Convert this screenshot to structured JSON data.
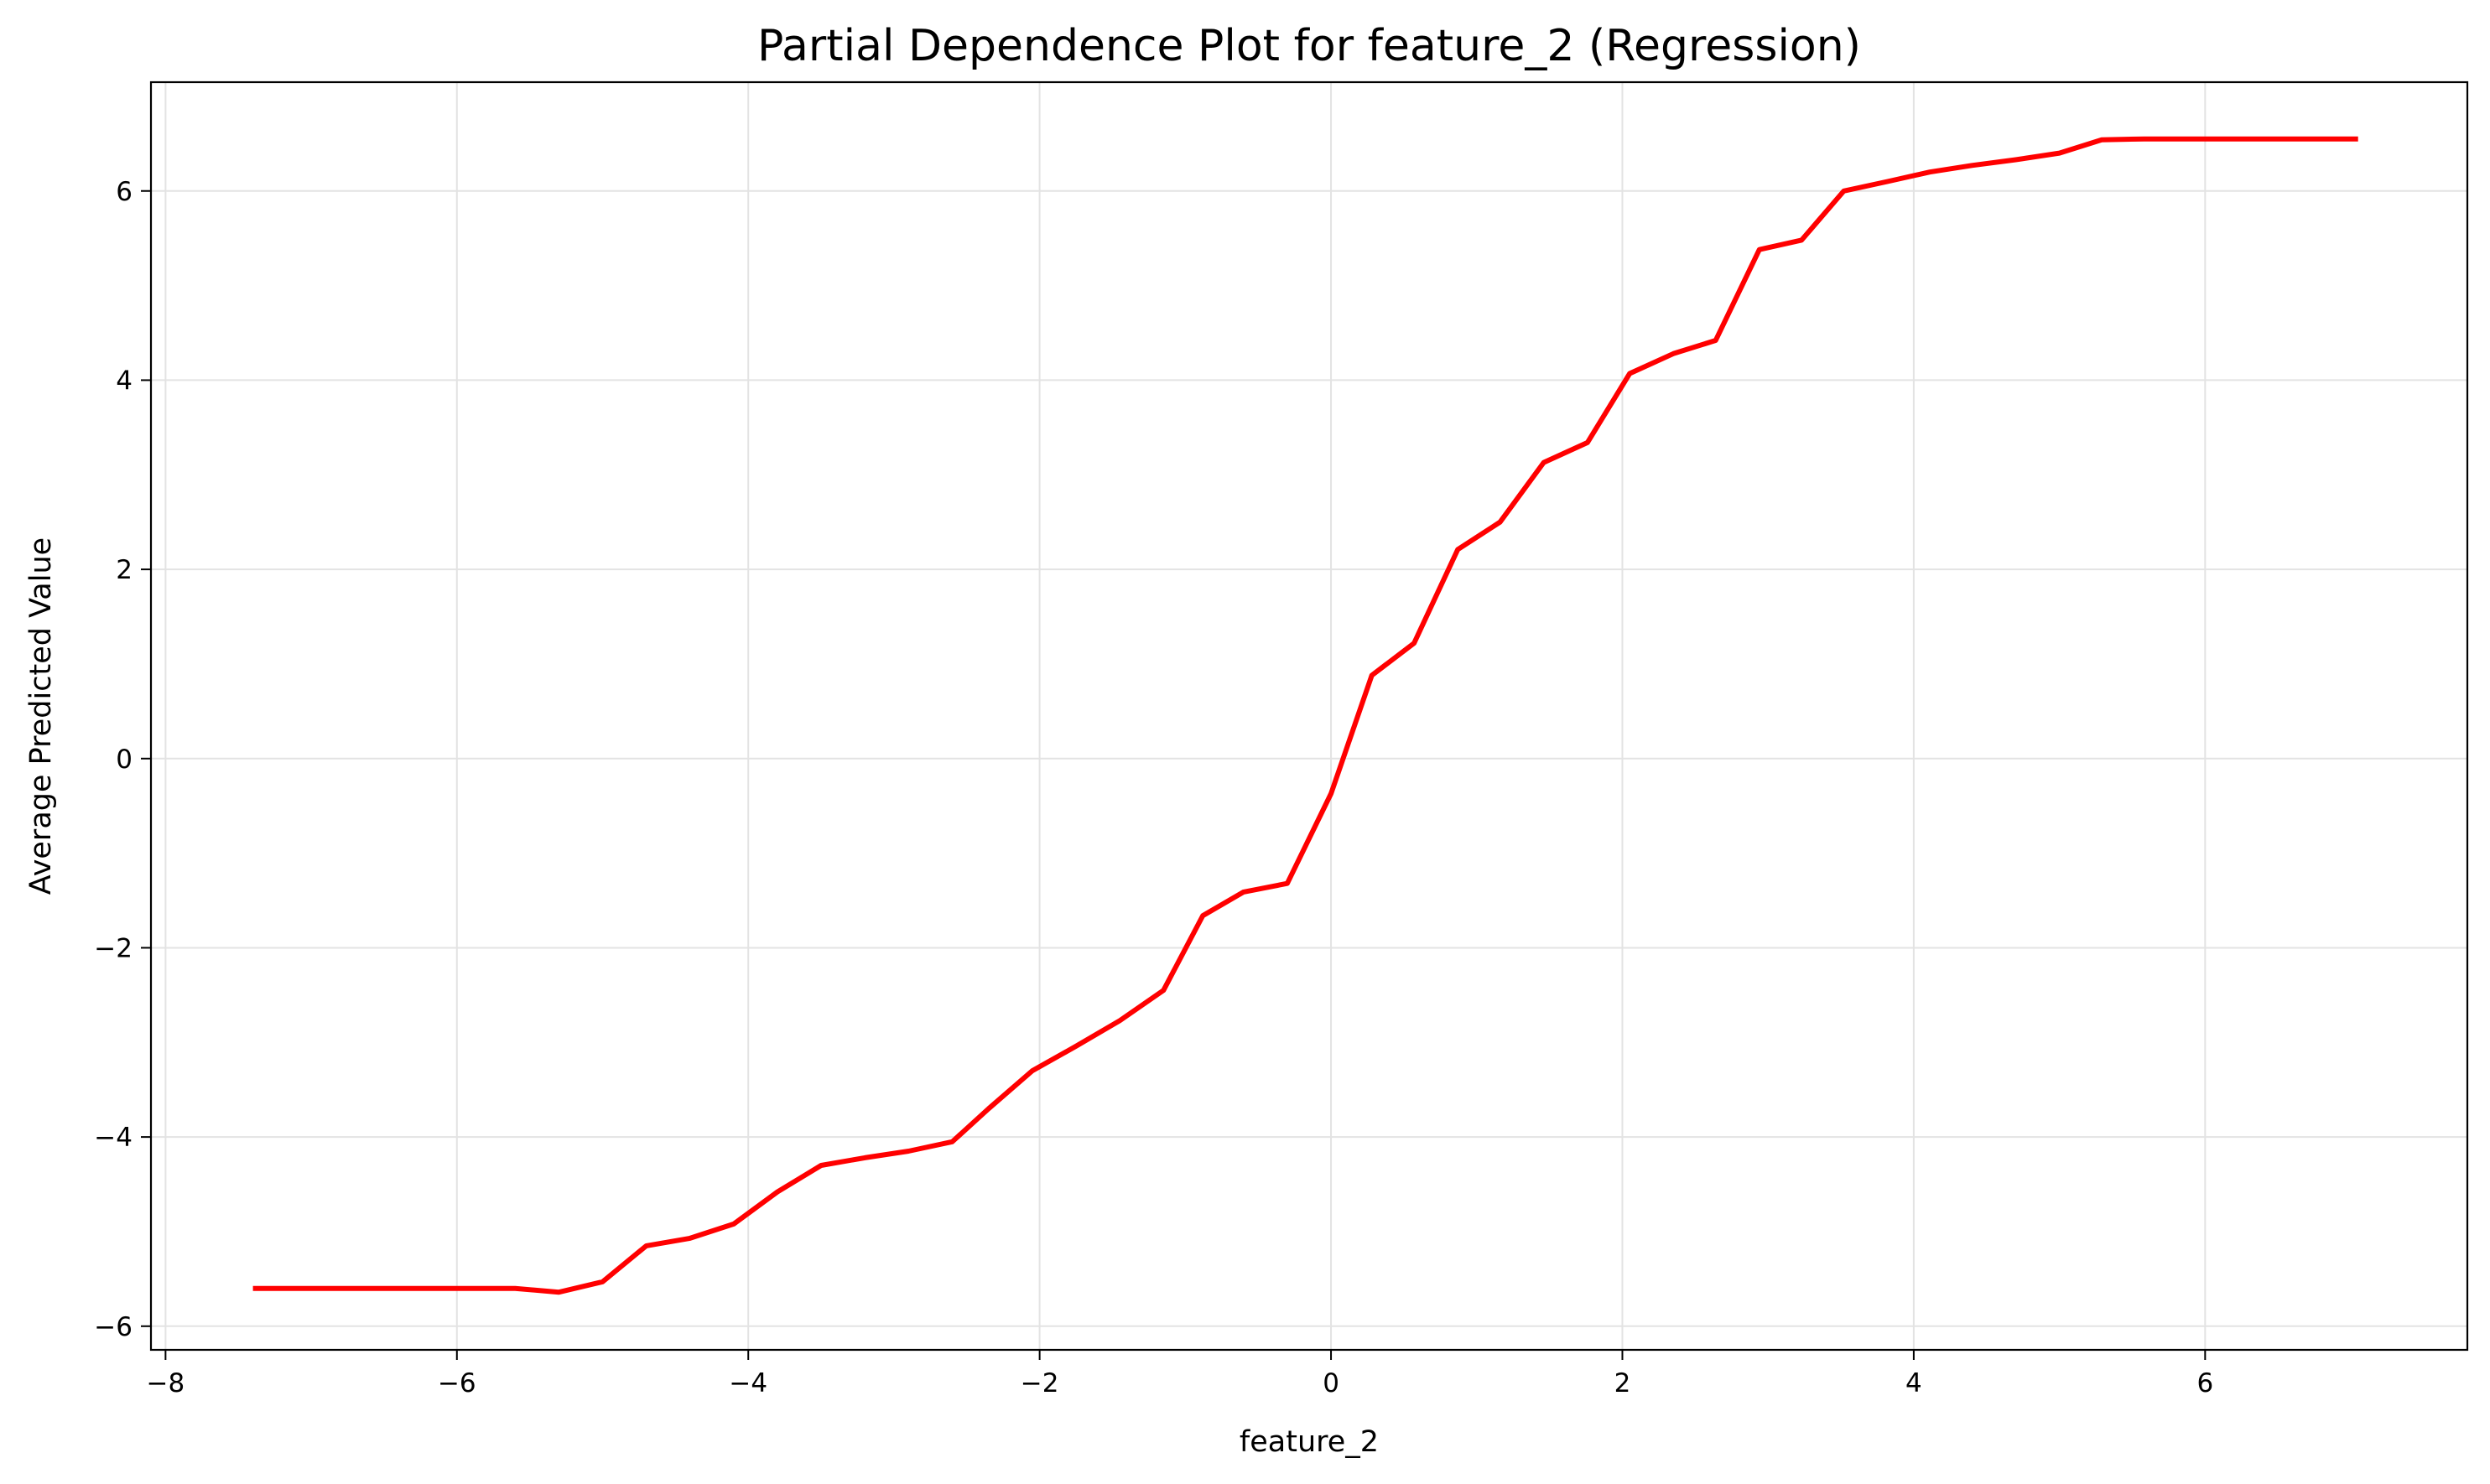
{
  "chart_data": {
    "type": "line",
    "title": "Partial Dependence Plot for feature_2 (Regression)",
    "xlabel": "feature_2",
    "ylabel": "Average Predicted Value",
    "xlim": [
      -8.1,
      7.8
    ],
    "ylim": [
      -6.25,
      7.15
    ],
    "xticks": [
      -8,
      -6,
      -4,
      -2,
      0,
      2,
      4,
      6
    ],
    "yticks": [
      -6,
      -4,
      -2,
      0,
      2,
      4,
      6
    ],
    "grid": true,
    "line_color": "#ff0000",
    "series": [
      {
        "x": [
          -7.4,
          -7.1,
          -6.8,
          -6.5,
          -6.2,
          -5.9,
          -5.6,
          -5.3,
          -5.0,
          -4.7,
          -4.4,
          -4.1,
          -3.8,
          -3.5,
          -3.2,
          -2.9,
          -2.6,
          -2.35,
          -2.05,
          -1.75,
          -1.45,
          -1.15,
          -0.88,
          -0.6,
          -0.3,
          0.0,
          0.28,
          0.57,
          0.87,
          1.16,
          1.46,
          1.76,
          2.05,
          2.35,
          2.64,
          2.94,
          3.23,
          3.52,
          3.82,
          4.11,
          4.4,
          4.7,
          5.0,
          5.29,
          5.58,
          5.88,
          6.17,
          6.46,
          6.76,
          7.05
        ],
        "y": [
          -5.6,
          -5.6,
          -5.6,
          -5.6,
          -5.6,
          -5.6,
          -5.6,
          -5.64,
          -5.53,
          -5.15,
          -5.07,
          -4.92,
          -4.58,
          -4.3,
          -4.22,
          -4.15,
          -4.05,
          -3.7,
          -3.3,
          -3.04,
          -2.77,
          -2.45,
          -1.66,
          -1.41,
          -1.32,
          -0.37,
          0.88,
          1.22,
          2.21,
          2.5,
          3.13,
          3.34,
          4.07,
          4.28,
          4.42,
          5.38,
          5.48,
          6.0,
          6.1,
          6.2,
          6.27,
          6.33,
          6.4,
          6.54,
          6.55,
          6.55,
          6.55,
          6.55,
          6.55,
          6.55
        ]
      }
    ]
  }
}
